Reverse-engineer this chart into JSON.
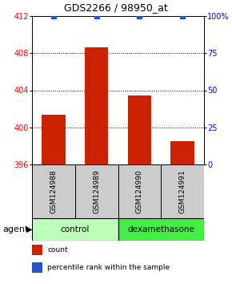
{
  "title": "GDS2266 / 98950_at",
  "samples": [
    "GSM124988",
    "GSM124989",
    "GSM124990",
    "GSM124991"
  ],
  "bar_values": [
    401.4,
    408.6,
    403.4,
    398.5
  ],
  "percentile_values": [
    100,
    100,
    100,
    100
  ],
  "ymin": 396,
  "ymax": 412,
  "yticks": [
    396,
    400,
    404,
    408,
    412
  ],
  "y2min": 0,
  "y2max": 100,
  "y2ticks": [
    0,
    25,
    50,
    75,
    100
  ],
  "y2ticklabels": [
    "0",
    "25",
    "50",
    "75",
    "100%"
  ],
  "bar_color": "#cc2200",
  "percentile_color": "#2255cc",
  "group_info": [
    {
      "label": "control",
      "span": [
        0,
        1
      ],
      "color": "#bbffbb"
    },
    {
      "label": "dexamethasone",
      "span": [
        2,
        3
      ],
      "color": "#44ee44"
    }
  ],
  "sample_box_color": "#cccccc",
  "legend_items": [
    {
      "label": "count",
      "color": "#cc2200"
    },
    {
      "label": "percentile rank within the sample",
      "color": "#2255cc"
    }
  ],
  "bar_width": 0.55,
  "agent_label": "agent"
}
